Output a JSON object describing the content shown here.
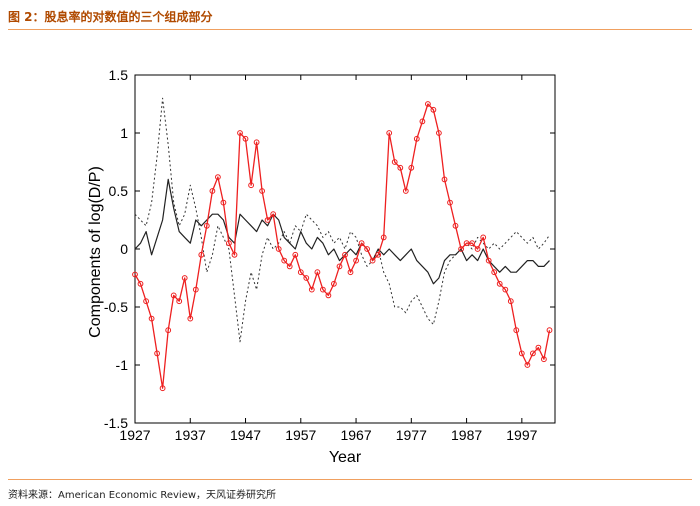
{
  "figure": {
    "title": "图 2：股息率的对数值的三个组成部分",
    "source": "资料来源：American Economic Review，天风证券研究所"
  },
  "colors": {
    "accent_rule": "#f0a060",
    "title": "#b04a00",
    "series_red": "#ee2020",
    "series_black": "#222222",
    "series_dotted": "#333333"
  },
  "chart_data": {
    "type": "line",
    "title": "",
    "xlabel": "Year",
    "ylabel": "Components of log(D/P)",
    "xlim": [
      1927,
      2003
    ],
    "ylim": [
      -1.5,
      1.5
    ],
    "xticks": [
      1927,
      1937,
      1947,
      1957,
      1967,
      1977,
      1987,
      1997
    ],
    "yticks": [
      1.5,
      1,
      0.5,
      0,
      -0.5,
      -1,
      -1.5
    ],
    "grid": false,
    "legend": "none",
    "series": [
      {
        "style": "red-circle-markers",
        "x": [
          1927,
          1928,
          1929,
          1930,
          1931,
          1932,
          1933,
          1934,
          1935,
          1936,
          1937,
          1938,
          1939,
          1940,
          1941,
          1942,
          1943,
          1944,
          1945,
          1946,
          1947,
          1948,
          1949,
          1950,
          1951,
          1952,
          1953,
          1954,
          1955,
          1956,
          1957,
          1958,
          1959,
          1960,
          1961,
          1962,
          1963,
          1964,
          1965,
          1966,
          1967,
          1968,
          1969,
          1970,
          1971,
          1972,
          1973,
          1974,
          1975,
          1976,
          1977,
          1978,
          1979,
          1980,
          1981,
          1982,
          1983,
          1984,
          1985,
          1986,
          1987,
          1988,
          1989,
          1990,
          1991,
          1992,
          1993,
          1994,
          1995,
          1996,
          1997,
          1998,
          1999,
          2000,
          2001,
          2002
        ],
        "values": [
          -0.22,
          -0.3,
          -0.45,
          -0.6,
          -0.9,
          -1.2,
          -0.7,
          -0.4,
          -0.45,
          -0.25,
          -0.6,
          -0.35,
          -0.05,
          0.2,
          0.5,
          0.62,
          0.4,
          0.05,
          -0.05,
          1.0,
          0.95,
          0.55,
          0.92,
          0.5,
          0.25,
          0.3,
          0.0,
          -0.1,
          -0.15,
          -0.05,
          -0.2,
          -0.25,
          -0.35,
          -0.2,
          -0.35,
          -0.4,
          -0.3,
          -0.15,
          -0.05,
          -0.2,
          -0.1,
          0.05,
          0.0,
          -0.1,
          -0.05,
          0.1,
          1.0,
          0.75,
          0.7,
          0.5,
          0.7,
          0.95,
          1.1,
          1.25,
          1.2,
          1.0,
          0.6,
          0.4,
          0.2,
          0.0,
          0.05,
          0.05,
          0.0,
          0.1,
          -0.1,
          -0.2,
          -0.3,
          -0.35,
          -0.45,
          -0.7,
          -0.9,
          -1.0,
          -0.9,
          -0.85,
          -0.95,
          -0.7
        ]
      },
      {
        "style": "black-solid",
        "x": [
          1927,
          1928,
          1929,
          1930,
          1931,
          1932,
          1933,
          1934,
          1935,
          1936,
          1937,
          1938,
          1939,
          1940,
          1941,
          1942,
          1943,
          1944,
          1945,
          1946,
          1947,
          1948,
          1949,
          1950,
          1951,
          1952,
          1953,
          1954,
          1955,
          1956,
          1957,
          1958,
          1959,
          1960,
          1961,
          1962,
          1963,
          1964,
          1965,
          1966,
          1967,
          1968,
          1969,
          1970,
          1971,
          1972,
          1973,
          1974,
          1975,
          1976,
          1977,
          1978,
          1979,
          1980,
          1981,
          1982,
          1983,
          1984,
          1985,
          1986,
          1987,
          1988,
          1989,
          1990,
          1991,
          1992,
          1993,
          1994,
          1995,
          1996,
          1997,
          1998,
          1999,
          2000,
          2001,
          2002
        ],
        "values": [
          0.0,
          0.05,
          0.15,
          -0.05,
          0.1,
          0.25,
          0.6,
          0.35,
          0.15,
          0.1,
          0.05,
          0.25,
          0.2,
          0.25,
          0.3,
          0.3,
          0.25,
          0.1,
          0.05,
          0.3,
          0.25,
          0.2,
          0.15,
          0.25,
          0.2,
          0.3,
          0.25,
          0.1,
          0.05,
          0.0,
          0.15,
          0.05,
          0.0,
          0.1,
          0.05,
          -0.05,
          0.0,
          -0.1,
          -0.05,
          0.0,
          -0.05,
          0.05,
          0.0,
          -0.1,
          0.0,
          -0.05,
          0.0,
          -0.05,
          -0.1,
          -0.05,
          0.0,
          -0.1,
          -0.15,
          -0.2,
          -0.3,
          -0.25,
          -0.1,
          -0.05,
          -0.05,
          0.0,
          -0.1,
          -0.05,
          -0.1,
          0.0,
          -0.1,
          -0.15,
          -0.2,
          -0.15,
          -0.2,
          -0.2,
          -0.15,
          -0.1,
          -0.1,
          -0.15,
          -0.15,
          -0.1
        ]
      },
      {
        "style": "black-dotted",
        "x": [
          1927,
          1928,
          1929,
          1930,
          1931,
          1932,
          1933,
          1934,
          1935,
          1936,
          1937,
          1938,
          1939,
          1940,
          1941,
          1942,
          1943,
          1944,
          1945,
          1946,
          1947,
          1948,
          1949,
          1950,
          1951,
          1952,
          1953,
          1954,
          1955,
          1956,
          1957,
          1958,
          1959,
          1960,
          1961,
          1962,
          1963,
          1964,
          1965,
          1966,
          1967,
          1968,
          1969,
          1970,
          1971,
          1972,
          1973,
          1974,
          1975,
          1976,
          1977,
          1978,
          1979,
          1980,
          1981,
          1982,
          1983,
          1984,
          1985,
          1986,
          1987,
          1988,
          1989,
          1990,
          1991,
          1992,
          1993,
          1994,
          1995,
          1996,
          1997,
          1998,
          1999,
          2000,
          2001,
          2002
        ],
        "values": [
          0.3,
          0.25,
          0.2,
          0.4,
          0.8,
          1.3,
          0.9,
          0.4,
          0.2,
          0.3,
          0.55,
          0.35,
          0.1,
          -0.2,
          -0.05,
          0.2,
          0.1,
          0.0,
          -0.4,
          -0.8,
          -0.45,
          -0.2,
          -0.35,
          -0.05,
          0.1,
          0.0,
          0.05,
          0.15,
          0.05,
          0.2,
          0.15,
          0.3,
          0.25,
          0.2,
          0.1,
          0.15,
          0.05,
          0.1,
          0.0,
          0.15,
          0.1,
          -0.05,
          -0.15,
          -0.1,
          0.0,
          -0.2,
          -0.3,
          -0.5,
          -0.5,
          -0.55,
          -0.45,
          -0.4,
          -0.5,
          -0.6,
          -0.65,
          -0.45,
          -0.2,
          -0.1,
          -0.05,
          0.0,
          0.05,
          0.0,
          0.1,
          0.05,
          0.0,
          0.05,
          0.0,
          0.05,
          0.1,
          0.15,
          0.1,
          0.05,
          0.1,
          0.0,
          0.05,
          0.12
        ]
      }
    ]
  }
}
